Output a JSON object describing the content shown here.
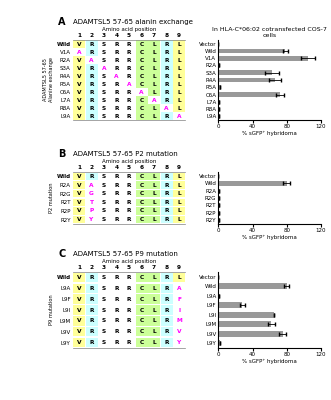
{
  "chart_data": [
    {
      "type": "table",
      "title": "ADAMTSL5 57-65 alanin exchange",
      "annotations": [
        "A"
      ],
      "x_label": "Amino acid position",
      "y_label": "ADAMTSL5 57-65\nAlanine exchange",
      "categories": [
        1,
        2,
        3,
        4,
        5,
        6,
        7,
        8,
        9
      ],
      "series": [
        {
          "name": "Wild",
          "values": [
            "V",
            "R",
            "S",
            "R",
            "R",
            "C",
            "L",
            "R",
            "L"
          ],
          "colors": [
            "#FFFF99",
            "#CCFFFF",
            "#FFFFFF",
            "#FFFFFF",
            "#FFFFFF",
            "#CCFF99",
            "#CCFF99",
            "#CCFFFF",
            "#FFFF99"
          ]
        },
        {
          "name": "V1A",
          "values": [
            "A",
            "R",
            "S",
            "R",
            "R",
            "C",
            "L",
            "R",
            "L"
          ],
          "colors": [
            "#FFFFFF",
            "#CCFFFF",
            "#FFFFFF",
            "#FFFFFF",
            "#FFFFFF",
            "#CCFF99",
            "#CCFF99",
            "#CCFFFF",
            "#FFFF99"
          ]
        },
        {
          "name": "R2A",
          "values": [
            "V",
            "A",
            "S",
            "R",
            "R",
            "C",
            "L",
            "R",
            "L"
          ],
          "colors": [
            "#FFFF99",
            "#FFFFFF",
            "#FFFFFF",
            "#FFFFFF",
            "#FFFFFF",
            "#CCFF99",
            "#CCFF99",
            "#CCFFFF",
            "#FFFF99"
          ]
        },
        {
          "name": "S3A",
          "values": [
            "V",
            "R",
            "A",
            "R",
            "R",
            "C",
            "L",
            "R",
            "L"
          ],
          "colors": [
            "#FFFF99",
            "#CCFFFF",
            "#FFFFFF",
            "#FFFFFF",
            "#FFFFFF",
            "#CCFF99",
            "#CCFF99",
            "#CCFFFF",
            "#FFFF99"
          ]
        },
        {
          "name": "R4A",
          "values": [
            "V",
            "R",
            "S",
            "A",
            "R",
            "C",
            "L",
            "R",
            "L"
          ],
          "colors": [
            "#FFFF99",
            "#CCFFFF",
            "#FFFFFF",
            "#FFFFFF",
            "#FFFFFF",
            "#CCFF99",
            "#CCFF99",
            "#CCFFFF",
            "#FFFF99"
          ]
        },
        {
          "name": "R5A",
          "values": [
            "V",
            "R",
            "S",
            "R",
            "A",
            "C",
            "L",
            "R",
            "L"
          ],
          "colors": [
            "#FFFF99",
            "#CCFFFF",
            "#FFFFFF",
            "#FFFFFF",
            "#FFFFFF",
            "#CCFF99",
            "#CCFF99",
            "#CCFFFF",
            "#FFFF99"
          ]
        },
        {
          "name": "C6A",
          "values": [
            "V",
            "R",
            "S",
            "R",
            "R",
            "A",
            "L",
            "R",
            "L"
          ],
          "colors": [
            "#FFFF99",
            "#CCFFFF",
            "#FFFFFF",
            "#FFFFFF",
            "#FFFFFF",
            "#FFFFFF",
            "#CCFF99",
            "#CCFFFF",
            "#FFFF99"
          ]
        },
        {
          "name": "L7A",
          "values": [
            "V",
            "R",
            "S",
            "R",
            "R",
            "C",
            "A",
            "R",
            "L"
          ],
          "colors": [
            "#FFFF99",
            "#CCFFFF",
            "#FFFFFF",
            "#FFFFFF",
            "#FFFFFF",
            "#CCFF99",
            "#FFFFFF",
            "#CCFFFF",
            "#FFFF99"
          ]
        },
        {
          "name": "R8A",
          "values": [
            "V",
            "R",
            "S",
            "R",
            "R",
            "C",
            "L",
            "A",
            "L"
          ],
          "colors": [
            "#FFFF99",
            "#CCFFFF",
            "#FFFFFF",
            "#FFFFFF",
            "#FFFFFF",
            "#CCFF99",
            "#CCFF99",
            "#FFFFFF",
            "#FFFF99"
          ]
        },
        {
          "name": "L9A",
          "values": [
            "V",
            "R",
            "S",
            "R",
            "R",
            "C",
            "L",
            "R",
            "A"
          ],
          "colors": [
            "#FFFF99",
            "#CCFFFF",
            "#FFFFFF",
            "#FFFFFF",
            "#FFFFFF",
            "#CCFF99",
            "#CCFF99",
            "#CCFFFF",
            "#FFFFFF"
          ]
        }
      ]
    },
    {
      "type": "bar",
      "orientation": "horizontal",
      "title": "In HLA-C*06:02 cotransfected COS-7 cells",
      "x_label": "% sGFP⁺ hybridoma",
      "categories": [
        "Vector",
        "Wild",
        "V1A",
        "R2A",
        "S3A",
        "R4A",
        "R5A",
        "C6A",
        "L7A",
        "R8A",
        "L9A"
      ],
      "values": [
        0,
        78,
        105,
        1,
        63,
        66,
        2,
        72,
        1,
        1,
        1
      ],
      "errors": [
        0,
        3,
        8,
        0,
        8,
        7,
        0,
        5,
        0,
        0,
        0
      ],
      "color": "#999999",
      "xlim": [
        0,
        120
      ],
      "xticks": [
        0,
        40,
        80,
        120
      ]
    },
    {
      "type": "table",
      "title": "ADAMTSL5 57-65 P2 mutation",
      "annotations": [
        "B"
      ],
      "x_label": "Amino acid position",
      "y_label": "P2 mutation",
      "categories": [
        1,
        2,
        3,
        4,
        5,
        6,
        7,
        8,
        9
      ],
      "series": [
        {
          "name": "Wild",
          "values": [
            "V",
            "R",
            "S",
            "R",
            "R",
            "C",
            "L",
            "R",
            "L"
          ],
          "colors": [
            "#FFFF99",
            "#CCFFFF",
            "#FFFFFF",
            "#FFFFFF",
            "#FFFFFF",
            "#CCFF99",
            "#CCFF99",
            "#CCFFFF",
            "#FFFF99"
          ]
        },
        {
          "name": "R2A",
          "values": [
            "V",
            "A",
            "S",
            "R",
            "R",
            "C",
            "L",
            "R",
            "L"
          ],
          "colors": [
            "#FFFF99",
            "#FFFFFF",
            "#FFFFFF",
            "#FFFFFF",
            "#FFFFFF",
            "#CCFF99",
            "#CCFF99",
            "#CCFFFF",
            "#FFFF99"
          ]
        },
        {
          "name": "R2G",
          "values": [
            "V",
            "G",
            "S",
            "R",
            "R",
            "C",
            "L",
            "R",
            "L"
          ],
          "colors": [
            "#FFFF99",
            "#FFFFFF",
            "#FFFFFF",
            "#FFFFFF",
            "#FFFFFF",
            "#CCFF99",
            "#CCFF99",
            "#CCFFFF",
            "#FFFF99"
          ]
        },
        {
          "name": "R2T",
          "values": [
            "V",
            "T",
            "S",
            "R",
            "R",
            "C",
            "L",
            "R",
            "L"
          ],
          "colors": [
            "#FFFF99",
            "#FFFFFF",
            "#FFFFFF",
            "#FFFFFF",
            "#FFFFFF",
            "#CCFF99",
            "#CCFF99",
            "#CCFFFF",
            "#FFFF99"
          ]
        },
        {
          "name": "R2P",
          "values": [
            "V",
            "P",
            "S",
            "R",
            "R",
            "C",
            "L",
            "R",
            "L"
          ],
          "colors": [
            "#FFFF99",
            "#FFFFFF",
            "#FFFFFF",
            "#FFFFFF",
            "#FFFFFF",
            "#CCFF99",
            "#CCFF99",
            "#CCFFFF",
            "#FFFF99"
          ]
        },
        {
          "name": "R2Y",
          "values": [
            "V",
            "Y",
            "S",
            "R",
            "R",
            "C",
            "L",
            "R",
            "L"
          ],
          "colors": [
            "#FFFF99",
            "#FFFFFF",
            "#FFFFFF",
            "#FFFFFF",
            "#FFFFFF",
            "#CCFF99",
            "#CCFF99",
            "#CCFFFF",
            "#FFFF99"
          ]
        }
      ]
    },
    {
      "type": "bar",
      "orientation": "horizontal",
      "x_label": "% sGFP⁺ hybridoma",
      "categories": [
        "Vector",
        "Wild",
        "R2A",
        "R2G",
        "R2T",
        "R2P",
        "R2Y"
      ],
      "values": [
        0,
        80,
        1,
        1,
        1,
        1,
        1
      ],
      "errors": [
        0,
        4,
        0,
        0,
        0,
        0,
        0
      ],
      "color": "#999999",
      "xlim": [
        0,
        120
      ],
      "xticks": [
        0,
        40,
        80,
        120
      ]
    },
    {
      "type": "table",
      "title": "ADAMTSL5 57-65 P9 mutation",
      "annotations": [
        "C"
      ],
      "x_label": "Amino acid position",
      "y_label": "P9 mutation",
      "categories": [
        1,
        2,
        3,
        4,
        5,
        6,
        7,
        8,
        9
      ],
      "series": [
        {
          "name": "Wild",
          "values": [
            "V",
            "R",
            "S",
            "R",
            "R",
            "C",
            "L",
            "R",
            "L"
          ],
          "colors": [
            "#FFFF99",
            "#CCFFFF",
            "#FFFFFF",
            "#FFFFFF",
            "#FFFFFF",
            "#CCFF99",
            "#CCFF99",
            "#CCFFFF",
            "#FFFF99"
          ]
        },
        {
          "name": "L9A",
          "values": [
            "V",
            "R",
            "S",
            "R",
            "R",
            "C",
            "L",
            "R",
            "A"
          ],
          "colors": [
            "#FFFF99",
            "#CCFFFF",
            "#FFFFFF",
            "#FFFFFF",
            "#FFFFFF",
            "#CCFF99",
            "#CCFF99",
            "#CCFFFF",
            "#FFFFFF"
          ]
        },
        {
          "name": "L9F",
          "values": [
            "V",
            "R",
            "S",
            "R",
            "R",
            "C",
            "L",
            "R",
            "F"
          ],
          "colors": [
            "#FFFF99",
            "#CCFFFF",
            "#FFFFFF",
            "#FFFFFF",
            "#FFFFFF",
            "#CCFF99",
            "#CCFF99",
            "#CCFFFF",
            "#FFFFFF"
          ]
        },
        {
          "name": "L9I",
          "values": [
            "V",
            "R",
            "S",
            "R",
            "R",
            "C",
            "L",
            "R",
            "I"
          ],
          "colors": [
            "#FFFF99",
            "#CCFFFF",
            "#FFFFFF",
            "#FFFFFF",
            "#FFFFFF",
            "#CCFF99",
            "#CCFF99",
            "#CCFFFF",
            "#FFFFFF"
          ]
        },
        {
          "name": "L9M",
          "values": [
            "V",
            "R",
            "S",
            "R",
            "R",
            "C",
            "L",
            "R",
            "M"
          ],
          "colors": [
            "#FFFF99",
            "#CCFFFF",
            "#FFFFFF",
            "#FFFFFF",
            "#FFFFFF",
            "#CCFF99",
            "#CCFF99",
            "#CCFFFF",
            "#FFFFFF"
          ]
        },
        {
          "name": "L9V",
          "values": [
            "V",
            "R",
            "S",
            "R",
            "R",
            "C",
            "L",
            "R",
            "V"
          ],
          "colors": [
            "#FFFF99",
            "#CCFFFF",
            "#FFFFFF",
            "#FFFFFF",
            "#FFFFFF",
            "#CCFF99",
            "#CCFF99",
            "#CCFFFF",
            "#FFFFFF"
          ]
        },
        {
          "name": "L9Y",
          "values": [
            "V",
            "R",
            "S",
            "R",
            "R",
            "C",
            "L",
            "R",
            "Y"
          ],
          "colors": [
            "#FFFF99",
            "#CCFFFF",
            "#FFFFFF",
            "#FFFFFF",
            "#FFFFFF",
            "#CCFF99",
            "#CCFF99",
            "#CCFFFF",
            "#FFFFFF"
          ]
        }
      ]
    },
    {
      "type": "bar",
      "orientation": "horizontal",
      "x_label": "% sGFP⁺ hybridoma",
      "categories": [
        "Vector",
        "Wild",
        "L9A",
        "L9F",
        "L9I",
        "L9M",
        "L9V",
        "L9Y"
      ],
      "values": [
        0,
        80,
        1,
        28,
        65,
        62,
        75,
        2
      ],
      "errors": [
        0,
        3,
        0,
        3,
        0,
        4,
        4,
        0
      ],
      "color": "#999999",
      "xlim": [
        0,
        120
      ],
      "xticks": [
        0,
        40,
        80,
        120
      ]
    }
  ]
}
